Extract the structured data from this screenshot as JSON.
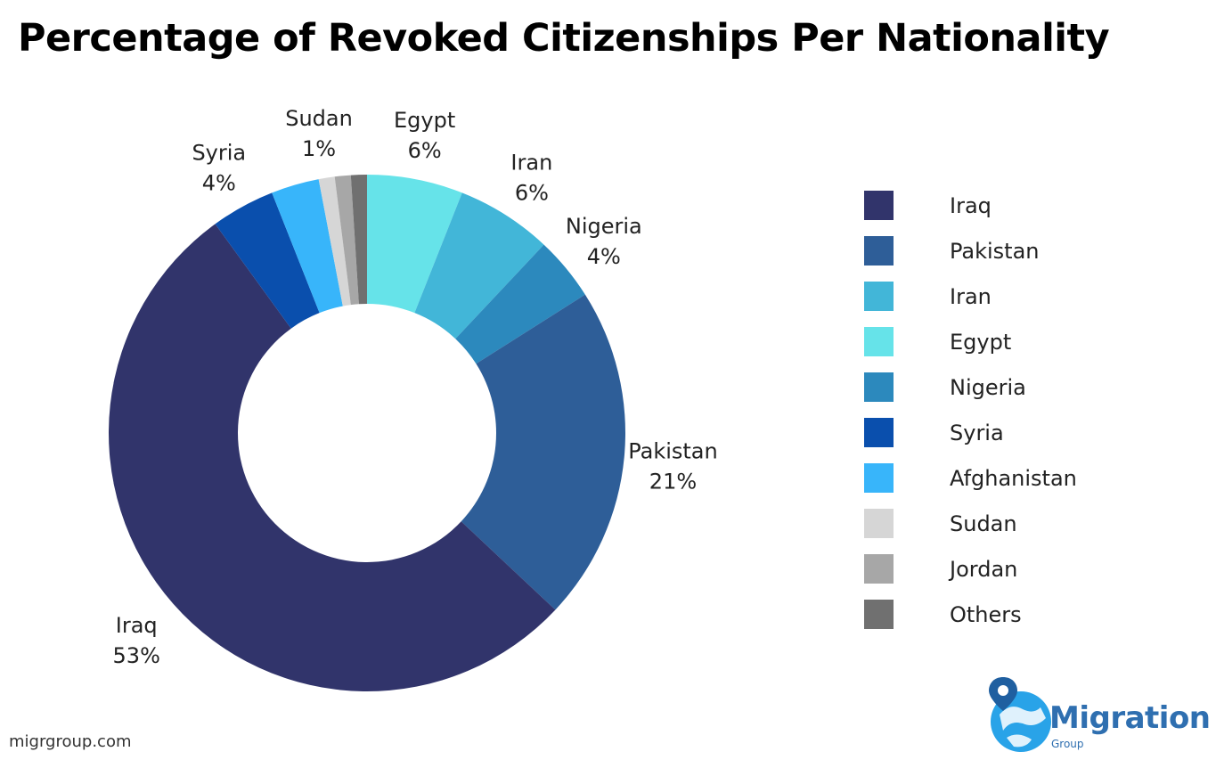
{
  "title": "Percentage of Revoked Citizenships Per Nationality",
  "footer": {
    "url": "migrgroup.com"
  },
  "logo": {
    "word": "Migration",
    "sub": "Group",
    "icon": "globe-pin-icon"
  },
  "chart_data": {
    "type": "pie",
    "variant": "donut",
    "title": "Percentage of Revoked Citizenships Per Nationality",
    "legend_position": "right",
    "slices": [
      {
        "name": "Egypt",
        "value": 6,
        "label": "Egypt",
        "pct": "6%",
        "color": "#66e3e9"
      },
      {
        "name": "Iran",
        "value": 6,
        "label": "Iran",
        "pct": "6%",
        "color": "#42b6d8"
      },
      {
        "name": "Nigeria",
        "value": 4,
        "label": "Nigeria",
        "pct": "4%",
        "color": "#2c89bd"
      },
      {
        "name": "Pakistan",
        "value": 21,
        "label": "Pakistan",
        "pct": "21%",
        "color": "#2e5e98"
      },
      {
        "name": "Iraq",
        "value": 53,
        "label": "Iraq",
        "pct": "53%",
        "color": "#31346b"
      },
      {
        "name": "Syria",
        "value": 4,
        "label": "Syria",
        "pct": "4%",
        "color": "#0a4fad"
      },
      {
        "name": "Afghanistan",
        "value": 3,
        "label": "",
        "pct": "",
        "color": "#38b5fa"
      },
      {
        "name": "Sudan",
        "value": 1,
        "label": "Sudan",
        "pct": "1%",
        "color": "#d6d6d6"
      },
      {
        "name": "Jordan",
        "value": 1,
        "label": "",
        "pct": "",
        "color": "#a7a7a7"
      },
      {
        "name": "Others",
        "value": 1,
        "label": "",
        "pct": "",
        "color": "#707070"
      }
    ],
    "legend": [
      {
        "label": "Iraq",
        "color": "#31346b"
      },
      {
        "label": "Pakistan",
        "color": "#2e5e98"
      },
      {
        "label": "Iran",
        "color": "#42b6d8"
      },
      {
        "label": "Egypt",
        "color": "#66e3e9"
      },
      {
        "label": "Nigeria",
        "color": "#2c89bd"
      },
      {
        "label": "Syria",
        "color": "#0a4fad"
      },
      {
        "label": "Afghanistan",
        "color": "#38b5fa"
      },
      {
        "label": "Sudan",
        "color": "#d6d6d6"
      },
      {
        "label": "Jordan",
        "color": "#a7a7a7"
      },
      {
        "label": "Others",
        "color": "#707070"
      }
    ]
  }
}
